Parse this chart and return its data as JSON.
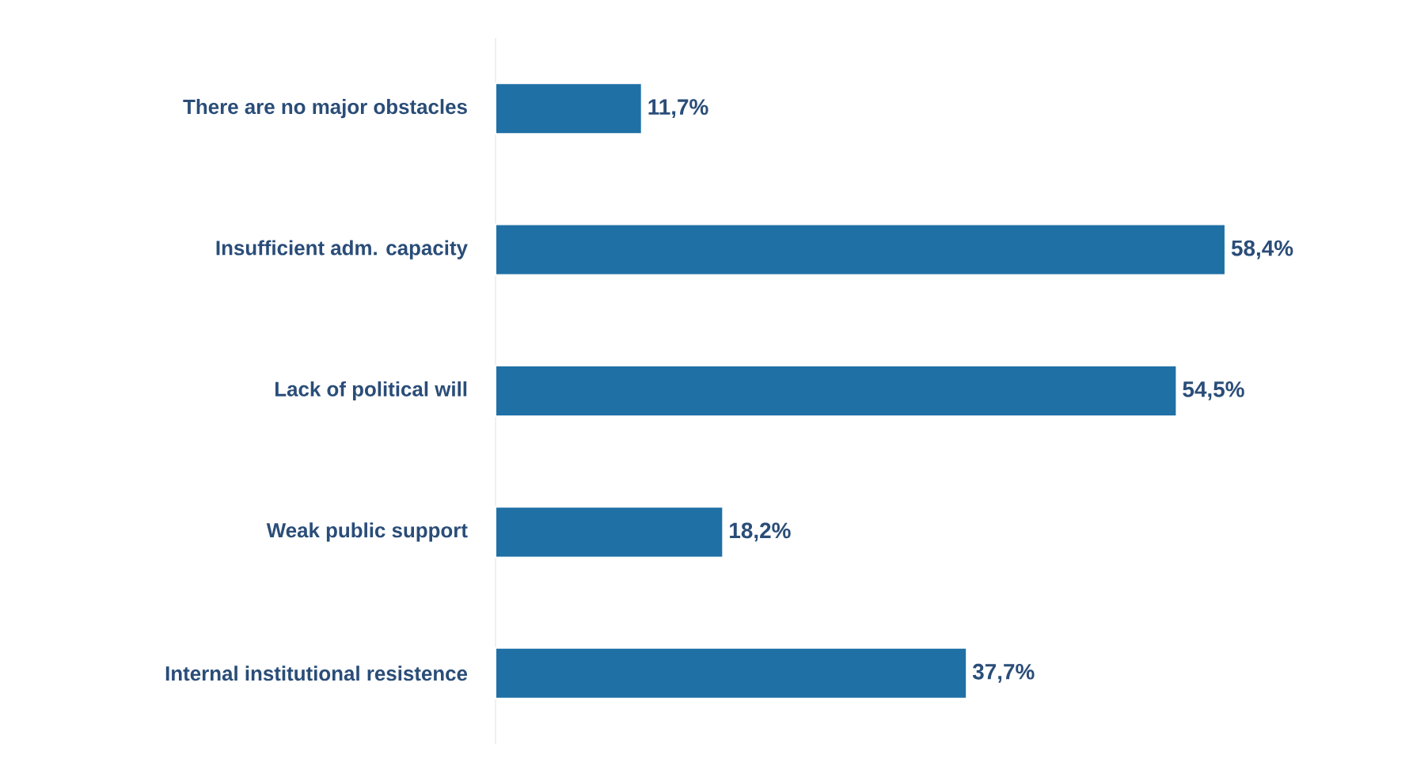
{
  "chart_data": {
    "type": "bar",
    "orientation": "horizontal",
    "categories": [
      "There are no major obstacles",
      "Insufficient adm. capacity",
      "Lack of political will",
      "Weak public support",
      "Internal institutional resistence"
    ],
    "values": [
      11.7,
      58.4,
      54.5,
      18.2,
      37.7
    ],
    "value_labels": [
      "11,7%",
      "58,4%",
      "54,5%",
      "18,2%",
      "37,7%"
    ],
    "color": "#1f70a5"
  }
}
